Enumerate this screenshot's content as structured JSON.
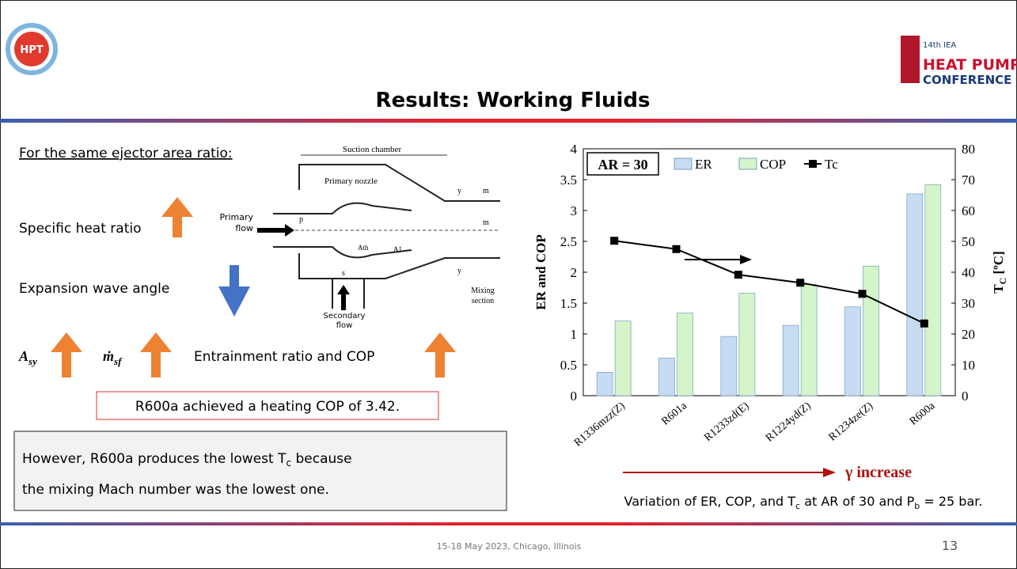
{
  "slide": {
    "title": "Results: Working Fluids",
    "logo_left": "HPT",
    "logo_right": {
      "edition": "14th IEA",
      "line1": "HEAT PUMP",
      "line2": "CONFERENCE"
    },
    "intro": "For the same ejector area ratio:",
    "items": {
      "heat_ratio": "Specific heat ratio",
      "wave_angle": "Expansion wave angle",
      "asy": {
        "main": "A",
        "sub": "sy"
      },
      "msf": {
        "main": "ṁ",
        "sub": "sf"
      },
      "er_cop": "Entrainment ratio and COP"
    },
    "highlight": "R600a achieved a heating COP of 3.42.",
    "note": {
      "line1": {
        "before": "However, R600a produces the lowest T",
        "sub": "c",
        "after": " because"
      },
      "line2": "the mixing Mach number was the lowest one."
    },
    "diagram": {
      "suction": "Suction chamber",
      "nozzle": "Primary nozzle",
      "primary1": "Primary",
      "primary2": "flow",
      "p": "p",
      "ath": "Ath",
      "a1": "A1",
      "y_top": "y",
      "y_bottom": "y",
      "m1": "m",
      "m2": "m",
      "s": "s",
      "secondary1": "Secondary",
      "secondary2": "flow",
      "mixing1": "Mixing",
      "mixing2": "section"
    },
    "caption": {
      "a": "Variation of ER, COP, and T",
      "sub1": "c",
      "b": " at AR of 30 and P",
      "sub2": "b",
      "c": " = 25 bar."
    },
    "footer": "15-18 May 2023, Chicago, Illinois",
    "page": "13"
  },
  "chart_data": {
    "type": "bar",
    "categories": [
      "R1336mzz(Z)",
      "R601a",
      "R1233zd(E)",
      "R1224yd(Z)",
      "R1234ze(Z)",
      "R600a"
    ],
    "series": [
      {
        "name": "ER",
        "color": "#c5dcf3",
        "values": [
          0.38,
          0.61,
          0.96,
          1.14,
          1.44,
          3.27
        ]
      },
      {
        "name": "COP",
        "color": "#d3f5c9",
        "values": [
          1.21,
          1.34,
          1.66,
          1.8,
          2.1,
          3.42
        ]
      },
      {
        "name": "Tc",
        "color": "#000000",
        "type": "line",
        "axis": "y2",
        "values": [
          50.2,
          47.5,
          39.2,
          36.6,
          33.0,
          23.4
        ]
      }
    ],
    "ylabel": "ER and COP",
    "y2label": {
      "main": "T",
      "sub": "C",
      "rest": " [ºC]"
    },
    "ylim": [
      0,
      4
    ],
    "yticks": [
      0,
      0.5,
      1,
      1.5,
      2,
      2.5,
      3,
      3.5,
      4
    ],
    "y2lim": [
      0,
      80
    ],
    "y2ticks": [
      0,
      10,
      20,
      30,
      40,
      50,
      60,
      70,
      80
    ],
    "annotation": "AR = 30",
    "trend_label": "γ increase"
  }
}
